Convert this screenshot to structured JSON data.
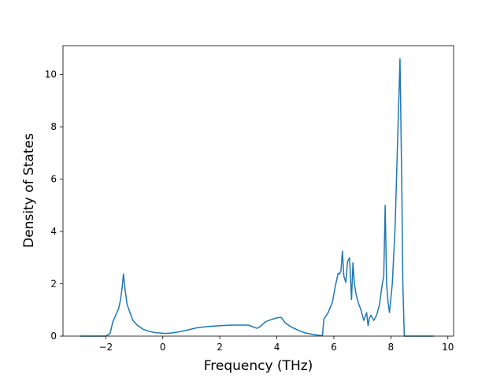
{
  "chart_data": {
    "type": "line",
    "title": "",
    "xlabel": "Frequency (THz)",
    "ylabel": "Density of States",
    "xlim": [
      -3.5,
      10.2
    ],
    "ylim": [
      0,
      11.1
    ],
    "xticks": [
      -2,
      0,
      2,
      4,
      6,
      8,
      10
    ],
    "xtick_labels": [
      "−2",
      "0",
      "2",
      "4",
      "6",
      "8",
      "10"
    ],
    "yticks": [
      0,
      2,
      4,
      6,
      8,
      10
    ],
    "ytick_labels": [
      "0",
      "2",
      "4",
      "6",
      "8",
      "10"
    ],
    "grid": false,
    "legend": "none",
    "line_color": "#1f77b4",
    "series": [
      {
        "x": [
          -2.9,
          -2.0,
          -1.85,
          -1.75,
          -1.65,
          -1.55,
          -1.48,
          -1.42,
          -1.38,
          -1.32,
          -1.25,
          -1.15,
          -1.05,
          -0.9,
          -0.7,
          -0.5,
          -0.3,
          -0.1,
          0.1,
          0.3,
          0.6,
          0.9,
          1.2,
          1.6,
          2.0,
          2.4,
          2.7,
          3.0,
          3.1,
          3.3,
          3.4,
          3.5,
          3.6,
          3.8,
          4.0,
          4.15,
          4.3,
          4.5,
          4.8,
          5.0,
          5.3,
          5.55,
          5.6,
          5.65,
          5.8,
          5.95,
          6.05,
          6.15,
          6.2,
          6.25,
          6.3,
          6.35,
          6.42,
          6.48,
          6.55,
          6.62,
          6.67,
          6.72,
          6.78,
          6.85,
          6.95,
          7.05,
          7.15,
          7.2,
          7.25,
          7.3,
          7.35,
          7.4,
          7.5,
          7.6,
          7.7,
          7.75,
          7.8,
          7.85,
          7.9,
          7.95,
          8.05,
          8.15,
          8.25,
          8.32,
          8.38,
          8.42,
          8.47,
          8.5,
          9.5
        ],
        "y": [
          0.0,
          0.0,
          0.1,
          0.55,
          0.8,
          1.05,
          1.4,
          1.9,
          2.38,
          1.75,
          1.2,
          0.9,
          0.6,
          0.42,
          0.27,
          0.19,
          0.14,
          0.12,
          0.1,
          0.12,
          0.17,
          0.24,
          0.32,
          0.37,
          0.4,
          0.42,
          0.42,
          0.42,
          0.38,
          0.3,
          0.35,
          0.45,
          0.55,
          0.63,
          0.7,
          0.72,
          0.5,
          0.35,
          0.2,
          0.12,
          0.06,
          0.02,
          0.02,
          0.65,
          0.9,
          1.3,
          1.9,
          2.4,
          2.38,
          2.5,
          3.25,
          2.3,
          2.05,
          2.85,
          3.0,
          1.4,
          2.8,
          2.0,
          1.6,
          1.3,
          1.0,
          0.6,
          0.9,
          0.4,
          0.7,
          0.8,
          0.7,
          0.6,
          0.8,
          1.2,
          2.0,
          2.3,
          5.0,
          2.0,
          1.3,
          0.9,
          2.0,
          4.2,
          8.0,
          10.6,
          6.0,
          2.0,
          0.0,
          0.0,
          0.0
        ]
      }
    ]
  }
}
